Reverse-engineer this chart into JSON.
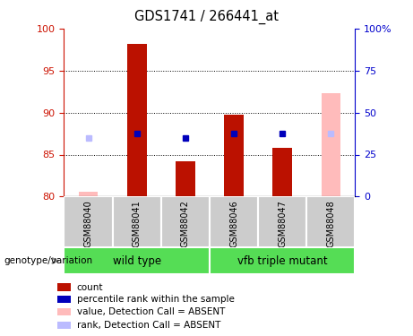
{
  "title": "GDS1741 / 266441_at",
  "samples": [
    "GSM88040",
    "GSM88041",
    "GSM88042",
    "GSM88046",
    "GSM88047",
    "GSM88048"
  ],
  "ylim_left": [
    80,
    100
  ],
  "ylim_right": [
    0,
    100
  ],
  "yticks_left": [
    80,
    85,
    90,
    95,
    100
  ],
  "yticks_right": [
    0,
    25,
    50,
    75,
    100
  ],
  "ytick_labels_right": [
    "0",
    "25",
    "50",
    "75",
    "100%"
  ],
  "bar_bottom": 80,
  "bars": {
    "GSM88040": {
      "absent_value": 80.6,
      "absent_rank": 87.0,
      "count": null,
      "rank": null
    },
    "GSM88041": {
      "absent_value": null,
      "absent_rank": null,
      "count": 98.2,
      "rank": 87.5
    },
    "GSM88042": {
      "absent_value": null,
      "absent_rank": null,
      "count": 84.2,
      "rank": 87.0
    },
    "GSM88046": {
      "absent_value": null,
      "absent_rank": null,
      "count": 89.8,
      "rank": 87.5
    },
    "GSM88047": {
      "absent_value": null,
      "absent_rank": null,
      "count": 85.8,
      "rank": 87.5
    },
    "GSM88048": {
      "absent_value": 92.3,
      "absent_rank": 87.5,
      "count": null,
      "rank": null
    }
  },
  "bar_width": 0.4,
  "marker_size": 5,
  "colors": {
    "count_bar": "#bb1100",
    "rank_marker": "#0000bb",
    "absent_value_bar": "#ffbbbb",
    "absent_rank_marker": "#bbbbff",
    "left_axis": "#cc1100",
    "right_axis": "#0000cc",
    "group_box_bg": "#cccccc",
    "group_label_bg": "#55dd55"
  },
  "legend_labels": [
    "count",
    "percentile rank within the sample",
    "value, Detection Call = ABSENT",
    "rank, Detection Call = ABSENT"
  ],
  "legend_colors": [
    "#bb1100",
    "#0000bb",
    "#ffbbbb",
    "#bbbbff"
  ],
  "group_spans": [
    [
      0,
      2,
      "wild type"
    ],
    [
      3,
      5,
      "vfb triple mutant"
    ]
  ],
  "grid_yticks": [
    85,
    90,
    95
  ]
}
